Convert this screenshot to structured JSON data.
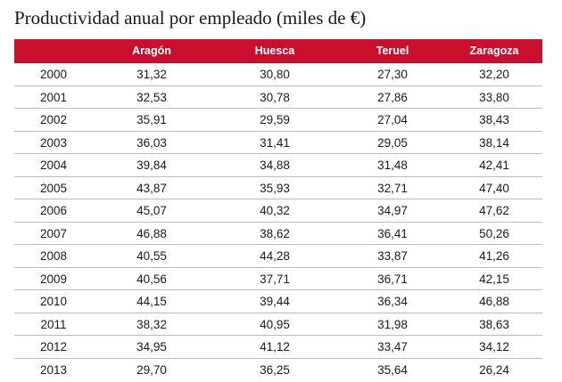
{
  "chart_data": {
    "type": "table",
    "title": "Productividad anual por empleado (miles de €)",
    "header_color": "#c8102e",
    "columns": [
      "",
      "Aragón",
      "Huesca",
      "Teruel",
      "Zaragoza"
    ],
    "rows": [
      [
        "2000",
        "31,32",
        "30,80",
        "27,30",
        "32,20"
      ],
      [
        "2001",
        "32,53",
        "30,78",
        "27,86",
        "33,80"
      ],
      [
        "2002",
        "35,91",
        "29,59",
        "27,04",
        "38,43"
      ],
      [
        "2003",
        "36,03",
        "31,41",
        "29,05",
        "38,14"
      ],
      [
        "2004",
        "39,84",
        "34,88",
        "31,48",
        "42,41"
      ],
      [
        "2005",
        "43,87",
        "35,93",
        "32,71",
        "47,40"
      ],
      [
        "2006",
        "45,07",
        "40,32",
        "34,97",
        "47,62"
      ],
      [
        "2007",
        "46,88",
        "38,62",
        "36,41",
        "50,26"
      ],
      [
        "2008",
        "40,55",
        "44,28",
        "33,87",
        "41,26"
      ],
      [
        "2009",
        "40,56",
        "37,71",
        "36,71",
        "42,15"
      ],
      [
        "2010",
        "44,15",
        "39,44",
        "36,34",
        "46,88"
      ],
      [
        "2011",
        "38,32",
        "40,95",
        "31,98",
        "38,63"
      ],
      [
        "2012",
        "34,95",
        "41,12",
        "33,47",
        "34,12"
      ],
      [
        "2013",
        "29,70",
        "36,25",
        "35,64",
        "26,24"
      ]
    ]
  }
}
